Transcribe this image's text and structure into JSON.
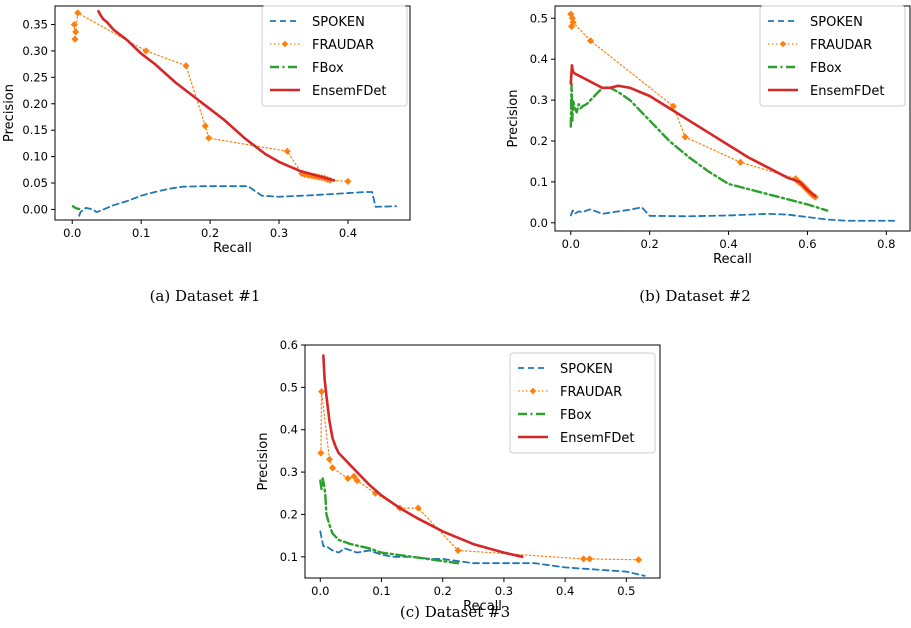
{
  "colors": {
    "SPOKEN": "#1f77b4",
    "FRAUDAR": "#ff7f0e",
    "FBox": "#2ca02c",
    "EnsemFDet": "#d62728"
  },
  "legend_order": [
    "SPOKEN",
    "FRAUDAR",
    "FBox",
    "EnsemFDet"
  ],
  "chart_data": [
    {
      "type": "line",
      "caption": "(a)  Dataset #1",
      "xlabel": "Recall",
      "ylabel": "Precision",
      "xlim": [
        -0.025,
        0.49
      ],
      "ylim": [
        -0.02,
        0.385
      ],
      "xticks": [
        "0.0",
        "0.1",
        "0.2",
        "0.3",
        "0.4"
      ],
      "yticks": [
        "0.00",
        "0.05",
        "0.10",
        "0.15",
        "0.20",
        "0.25",
        "0.30",
        "0.35"
      ],
      "legend": "top-right",
      "grid": false,
      "series": [
        {
          "name": "SPOKEN",
          "x": [
            0.01,
            0.012,
            0.02,
            0.03,
            0.035,
            0.04,
            0.06,
            0.08,
            0.1,
            0.12,
            0.14,
            0.16,
            0.19,
            0.22,
            0.255,
            0.265,
            0.275,
            0.3,
            0.35,
            0.4,
            0.425,
            0.435,
            0.44,
            0.47
          ],
          "y": [
            -0.012,
            -0.005,
            0.003,
            0.0,
            -0.005,
            -0.003,
            0.008,
            0.016,
            0.026,
            0.033,
            0.039,
            0.043,
            0.044,
            0.044,
            0.044,
            0.035,
            0.026,
            0.024,
            0.027,
            0.031,
            0.033,
            0.033,
            0.005,
            0.006
          ]
        },
        {
          "name": "FRAUDAR",
          "x": [
            0.003,
            0.004,
            0.005,
            0.008,
            0.107,
            0.165,
            0.193,
            0.198,
            0.312,
            0.333,
            0.337,
            0.342,
            0.346,
            0.35,
            0.354,
            0.358,
            0.362,
            0.366,
            0.37,
            0.374,
            0.4
          ],
          "y": [
            0.35,
            0.322,
            0.336,
            0.372,
            0.3,
            0.272,
            0.158,
            0.135,
            0.11,
            0.068,
            0.066,
            0.065,
            0.064,
            0.063,
            0.062,
            0.061,
            0.06,
            0.059,
            0.057,
            0.055,
            0.053
          ]
        },
        {
          "name": "FBox",
          "x": [
            0.001,
            0.003,
            0.006,
            0.01
          ],
          "y": [
            0.006,
            0.004,
            0.002,
            0.001
          ]
        },
        {
          "name": "EnsemFDet",
          "x": [
            0.038,
            0.04,
            0.045,
            0.05,
            0.06,
            0.08,
            0.1,
            0.12,
            0.15,
            0.18,
            0.2,
            0.22,
            0.25,
            0.28,
            0.3,
            0.33,
            0.36,
            0.38
          ],
          "y": [
            0.375,
            0.37,
            0.36,
            0.355,
            0.34,
            0.32,
            0.295,
            0.275,
            0.24,
            0.21,
            0.19,
            0.17,
            0.135,
            0.105,
            0.09,
            0.073,
            0.062,
            0.055
          ]
        }
      ]
    },
    {
      "type": "line",
      "caption": "(b)  Dataset #2",
      "xlabel": "Recall",
      "ylabel": "Precision",
      "xlim": [
        -0.04,
        0.86
      ],
      "ylim": [
        -0.02,
        0.53
      ],
      "xticks": [
        "0.0",
        "0.2",
        "0.4",
        "0.6",
        "0.8"
      ],
      "yticks": [
        "0.0",
        "0.1",
        "0.2",
        "0.3",
        "0.4",
        "0.5"
      ],
      "legend": "top-right",
      "grid": false,
      "series": [
        {
          "name": "SPOKEN",
          "x": [
            0.0,
            0.005,
            0.01,
            0.02,
            0.03,
            0.04,
            0.05,
            0.08,
            0.1,
            0.15,
            0.18,
            0.2,
            0.3,
            0.4,
            0.5,
            0.55,
            0.6,
            0.65,
            0.7,
            0.8,
            0.82
          ],
          "y": [
            0.018,
            0.03,
            0.022,
            0.028,
            0.026,
            0.03,
            0.033,
            0.022,
            0.025,
            0.032,
            0.038,
            0.017,
            0.016,
            0.018,
            0.022,
            0.02,
            0.014,
            0.008,
            0.005,
            0.005,
            0.005
          ]
        },
        {
          "name": "FRAUDAR",
          "x": [
            0.0,
            0.002,
            0.004,
            0.006,
            0.05,
            0.26,
            0.29,
            0.43,
            0.57,
            0.575,
            0.58,
            0.585,
            0.59,
            0.595,
            0.6,
            0.605,
            0.61,
            0.615,
            0.62
          ],
          "y": [
            0.51,
            0.48,
            0.5,
            0.49,
            0.445,
            0.285,
            0.21,
            0.148,
            0.108,
            0.102,
            0.098,
            0.095,
            0.09,
            0.085,
            0.08,
            0.075,
            0.07,
            0.066,
            0.063
          ]
        },
        {
          "name": "FBox",
          "x": [
            0.0,
            0.002,
            0.004,
            0.006,
            0.01,
            0.015,
            0.02,
            0.025,
            0.03,
            0.04,
            0.06,
            0.08,
            0.1,
            0.12,
            0.15,
            0.2,
            0.25,
            0.3,
            0.35,
            0.4,
            0.5,
            0.6,
            0.65
          ],
          "y": [
            0.235,
            0.34,
            0.25,
            0.3,
            0.28,
            0.27,
            0.29,
            0.28,
            0.285,
            0.29,
            0.31,
            0.33,
            0.33,
            0.32,
            0.3,
            0.25,
            0.2,
            0.16,
            0.125,
            0.095,
            0.07,
            0.045,
            0.03
          ]
        },
        {
          "name": "EnsemFDet",
          "x": [
            0.0,
            0.003,
            0.005,
            0.01,
            0.02,
            0.04,
            0.06,
            0.08,
            0.1,
            0.12,
            0.15,
            0.2,
            0.25,
            0.3,
            0.35,
            0.4,
            0.45,
            0.5,
            0.55,
            0.58,
            0.6,
            0.62
          ],
          "y": [
            0.34,
            0.385,
            0.37,
            0.365,
            0.36,
            0.35,
            0.34,
            0.33,
            0.33,
            0.335,
            0.33,
            0.31,
            0.28,
            0.25,
            0.22,
            0.19,
            0.16,
            0.135,
            0.11,
            0.1,
            0.08,
            0.065
          ]
        }
      ]
    },
    {
      "type": "line",
      "caption": "(c)  Dataset #3",
      "xlabel": "Recall",
      "ylabel": "Precision",
      "xlim": [
        -0.025,
        0.555
      ],
      "ylim": [
        0.05,
        0.6
      ],
      "xticks": [
        "0.0",
        "0.1",
        "0.2",
        "0.3",
        "0.4",
        "0.5"
      ],
      "yticks": [
        "0.1",
        "0.2",
        "0.3",
        "0.4",
        "0.5",
        "0.6"
      ],
      "legend": "top-right",
      "grid": false,
      "series": [
        {
          "name": "SPOKEN",
          "x": [
            0.0,
            0.002,
            0.005,
            0.01,
            0.02,
            0.03,
            0.04,
            0.05,
            0.06,
            0.08,
            0.1,
            0.12,
            0.15,
            0.18,
            0.2,
            0.25,
            0.3,
            0.35,
            0.4,
            0.45,
            0.5,
            0.53
          ],
          "y": [
            0.16,
            0.145,
            0.125,
            0.125,
            0.115,
            0.11,
            0.12,
            0.115,
            0.11,
            0.115,
            0.105,
            0.1,
            0.1,
            0.095,
            0.095,
            0.085,
            0.085,
            0.085,
            0.075,
            0.07,
            0.065,
            0.055
          ]
        },
        {
          "name": "FRAUDAR",
          "x": [
            0.001,
            0.002,
            0.015,
            0.02,
            0.045,
            0.055,
            0.06,
            0.09,
            0.13,
            0.16,
            0.225,
            0.43,
            0.44,
            0.52
          ],
          "y": [
            0.345,
            0.49,
            0.33,
            0.31,
            0.285,
            0.29,
            0.28,
            0.25,
            0.215,
            0.215,
            0.115,
            0.095,
            0.095,
            0.093
          ]
        },
        {
          "name": "FBox",
          "x": [
            0.0,
            0.002,
            0.004,
            0.006,
            0.008,
            0.01,
            0.015,
            0.02,
            0.03,
            0.05,
            0.08,
            0.1,
            0.15,
            0.2,
            0.225
          ],
          "y": [
            0.28,
            0.26,
            0.285,
            0.27,
            0.25,
            0.2,
            0.175,
            0.155,
            0.14,
            0.13,
            0.12,
            0.11,
            0.1,
            0.09,
            0.085
          ]
        },
        {
          "name": "EnsemFDet",
          "x": [
            0.005,
            0.007,
            0.01,
            0.015,
            0.02,
            0.025,
            0.03,
            0.04,
            0.06,
            0.08,
            0.1,
            0.13,
            0.16,
            0.2,
            0.25,
            0.3,
            0.33
          ],
          "y": [
            0.575,
            0.52,
            0.48,
            0.42,
            0.38,
            0.36,
            0.345,
            0.33,
            0.3,
            0.27,
            0.245,
            0.215,
            0.19,
            0.16,
            0.13,
            0.11,
            0.1
          ]
        }
      ]
    }
  ]
}
